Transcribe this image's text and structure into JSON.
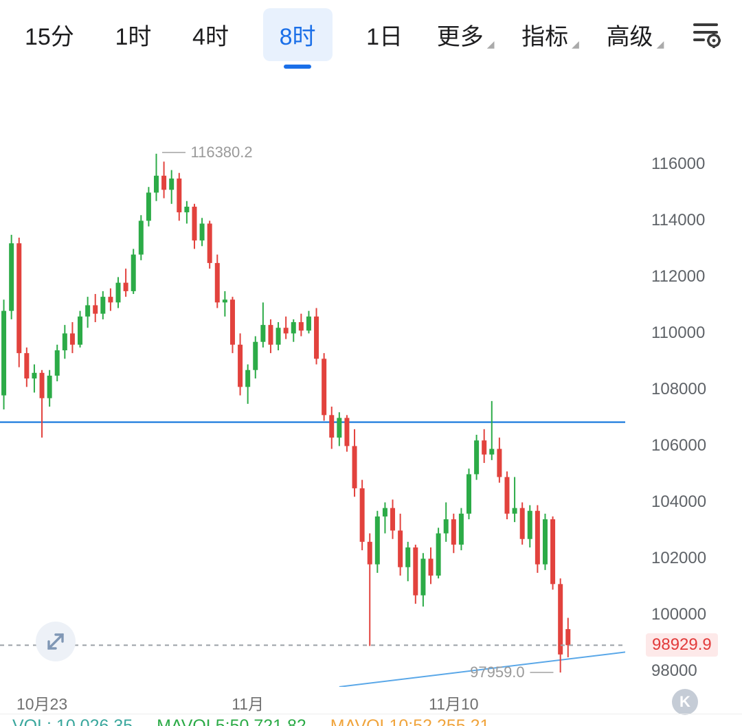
{
  "toolbar": {
    "tabs": [
      {
        "label": "15分",
        "active": false
      },
      {
        "label": "1时",
        "active": false
      },
      {
        "label": "4时",
        "active": false
      },
      {
        "label": "8时",
        "active": true
      },
      {
        "label": "1日",
        "active": false
      }
    ],
    "menus": [
      {
        "label": "更多"
      },
      {
        "label": "指标"
      },
      {
        "label": "高级"
      }
    ],
    "accent_color": "#1a6fe8"
  },
  "chart_data": {
    "type": "candlestick",
    "timeframe": "8时",
    "price_axis": {
      "min": 97450,
      "max": 119400,
      "ticks": [
        116000,
        114000,
        112000,
        110000,
        108000,
        106000,
        104000,
        102000,
        100000,
        98000
      ]
    },
    "x_axis_labels": [
      {
        "label": "10月23",
        "index": 5
      },
      {
        "label": "11月",
        "index": 32
      },
      {
        "label": "11月10",
        "index": 59
      }
    ],
    "slots": 82,
    "colors": {
      "up": "#2cab47",
      "down": "#e2423d"
    },
    "candles": [
      [
        107800,
        111200,
        107300,
        110800
      ],
      [
        110800,
        113500,
        110500,
        113200
      ],
      [
        113200,
        113400,
        108800,
        109300
      ],
      [
        109300,
        109500,
        108100,
        108400
      ],
      [
        108400,
        108900,
        107900,
        108600
      ],
      [
        108600,
        108700,
        106300,
        107700
      ],
      [
        107700,
        108700,
        107400,
        108500
      ],
      [
        108500,
        109600,
        108300,
        109400
      ],
      [
        109400,
        110300,
        109100,
        110000
      ],
      [
        110000,
        110400,
        109300,
        109600
      ],
      [
        109600,
        110800,
        109500,
        110600
      ],
      [
        110600,
        111300,
        110200,
        111000
      ],
      [
        111000,
        111400,
        110400,
        110700
      ],
      [
        110700,
        111500,
        110500,
        111300
      ],
      [
        111300,
        111600,
        110800,
        111100
      ],
      [
        111100,
        112000,
        110900,
        111800
      ],
      [
        111800,
        112300,
        111300,
        111500
      ],
      [
        111500,
        113000,
        111400,
        112800
      ],
      [
        112800,
        114200,
        112600,
        114000
      ],
      [
        114000,
        115200,
        113800,
        115000
      ],
      [
        115000,
        116380,
        114700,
        115600
      ],
      [
        115600,
        116100,
        114800,
        115100
      ],
      [
        115100,
        115800,
        114600,
        115500
      ],
      [
        115500,
        115700,
        114000,
        114300
      ],
      [
        114300,
        114700,
        113900,
        114500
      ],
      [
        114500,
        114600,
        113000,
        113300
      ],
      [
        113300,
        114100,
        113100,
        113900
      ],
      [
        113900,
        114000,
        112300,
        112500
      ],
      [
        112500,
        112800,
        110900,
        111100
      ],
      [
        111100,
        111500,
        110600,
        111200
      ],
      [
        111200,
        111300,
        109300,
        109600
      ],
      [
        109600,
        110000,
        107800,
        108100
      ],
      [
        108100,
        108900,
        107500,
        108700
      ],
      [
        108700,
        109900,
        108400,
        109700
      ],
      [
        109700,
        111100,
        109500,
        110300
      ],
      [
        110300,
        110500,
        109300,
        109600
      ],
      [
        109600,
        110400,
        109400,
        110200
      ],
      [
        110200,
        110600,
        109800,
        110000
      ],
      [
        110000,
        110500,
        109700,
        110400
      ],
      [
        110400,
        110700,
        109900,
        110100
      ],
      [
        110100,
        110800,
        110000,
        110600
      ],
      [
        110600,
        110900,
        108900,
        109100
      ],
      [
        109100,
        109300,
        106900,
        107100
      ],
      [
        107100,
        107400,
        105900,
        106300
      ],
      [
        106300,
        107200,
        106000,
        107000
      ],
      [
        107000,
        107100,
        105800,
        106000
      ],
      [
        106000,
        106600,
        104200,
        104500
      ],
      [
        104500,
        104800,
        102300,
        102600
      ],
      [
        102600,
        102900,
        98900,
        101800
      ],
      [
        101800,
        103700,
        101500,
        103500
      ],
      [
        103500,
        104000,
        102900,
        103800
      ],
      [
        103800,
        104100,
        102700,
        103000
      ],
      [
        103000,
        103600,
        101400,
        101700
      ],
      [
        101700,
        102600,
        101200,
        102400
      ],
      [
        102400,
        102500,
        100400,
        100700
      ],
      [
        100700,
        102200,
        100300,
        102000
      ],
      [
        102000,
        102400,
        101100,
        101400
      ],
      [
        101400,
        103100,
        101300,
        102900
      ],
      [
        102900,
        104000,
        102600,
        103400
      ],
      [
        103400,
        103600,
        102200,
        102500
      ],
      [
        102500,
        103800,
        102300,
        103600
      ],
      [
        103600,
        105200,
        103400,
        105000
      ],
      [
        105000,
        106400,
        104800,
        106200
      ],
      [
        106200,
        106600,
        105400,
        105700
      ],
      [
        105700,
        107600,
        105500,
        105900
      ],
      [
        105900,
        106300,
        104700,
        104900
      ],
      [
        104900,
        105100,
        103400,
        103600
      ],
      [
        103600,
        104900,
        103300,
        103800
      ],
      [
        103800,
        104000,
        102500,
        102700
      ],
      [
        102700,
        103900,
        102400,
        103700
      ],
      [
        103700,
        103900,
        101500,
        101800
      ],
      [
        101800,
        103600,
        101600,
        103400
      ],
      [
        103400,
        103500,
        100900,
        101100
      ],
      [
        101100,
        101300,
        97959,
        98600
      ],
      [
        99500,
        99900,
        98500,
        98930
      ]
    ],
    "annotations": {
      "high": {
        "price": 116380.2,
        "label": "116380.2",
        "index": 20
      },
      "low": {
        "price": 97959.0,
        "label": "97959.0",
        "index": 73
      },
      "current_price": {
        "price": 98929.9,
        "label": "98929.9",
        "color": "#e23b3b"
      },
      "horizontal_line": {
        "price": 106850,
        "color": "#2f86e0"
      },
      "trendline": {
        "from_index": 44,
        "from_price": 97450,
        "to_index": 82,
        "to_price": 98700,
        "color": "#59a7e8"
      }
    }
  },
  "volume_readout": {
    "vol": "VOL: 10,026.35",
    "mavol5": "MAVOL5:50,721.82",
    "mavol10": "MAVOL10:52,255.21",
    "colors": {
      "vol": "#3aa79d",
      "mavol5": "#2cab47",
      "mavol10": "#f0a43c"
    }
  },
  "misc": {
    "k_badge": "K"
  }
}
